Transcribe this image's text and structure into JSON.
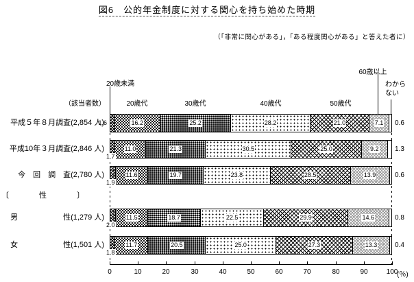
{
  "title": "図6　公的年金制度に対する関心を持ち始めた時期",
  "subtitle": "（「非常に関心がある」，「ある程度関心がある」と答えた者に）",
  "respondents_label": "（該当者数）",
  "section_label": "〔　　　　性　　　　〕",
  "axis_unit": "(％)",
  "chart_data": {
    "type": "stacked_bar_horizontal",
    "unit": "%",
    "xlim": [
      0,
      100
    ],
    "x_ticks": [
      0,
      10,
      20,
      30,
      40,
      50,
      60,
      70,
      80,
      90,
      100
    ],
    "grid": false,
    "legend_position": "labels-above-first-bar",
    "categories": [
      "20歳未満",
      "20歳代",
      "30歳代",
      "40歳代",
      "50歳代",
      "60歳以上",
      "わからない"
    ],
    "patterns": [
      "dense-crosshatch",
      "dots-medium",
      "black-halftone",
      "dots-light",
      "crosshatch-dark",
      "crosshatch-light",
      "plain-white"
    ],
    "rows": [
      {
        "label": "平成５年８月調査(2,854 人)",
        "values": [
          1.6,
          16.2,
          25.2,
          28.2,
          21.0,
          7.1,
          0.6
        ]
      },
      {
        "label": "平成10年３月調査(2,846 人)",
        "values": [
          1.7,
          11.0,
          21.3,
          30.5,
          25.0,
          9.2,
          1.3
        ]
      },
      {
        "label": "今　回　調　査(2,780 人)",
        "values": [
          1.9,
          11.6,
          19.7,
          23.8,
          28.5,
          13.9,
          0.6
        ]
      },
      {
        "label": "男　　　　　　性(1,279 人)",
        "values": [
          2.0,
          11.5,
          18.7,
          22.5,
          29.9,
          14.6,
          0.8
        ]
      },
      {
        "label": "女　　　　　　性(1,501 人)",
        "values": [
          1.8,
          11.7,
          20.5,
          25.0,
          27.3,
          13.3,
          0.4
        ]
      }
    ]
  }
}
